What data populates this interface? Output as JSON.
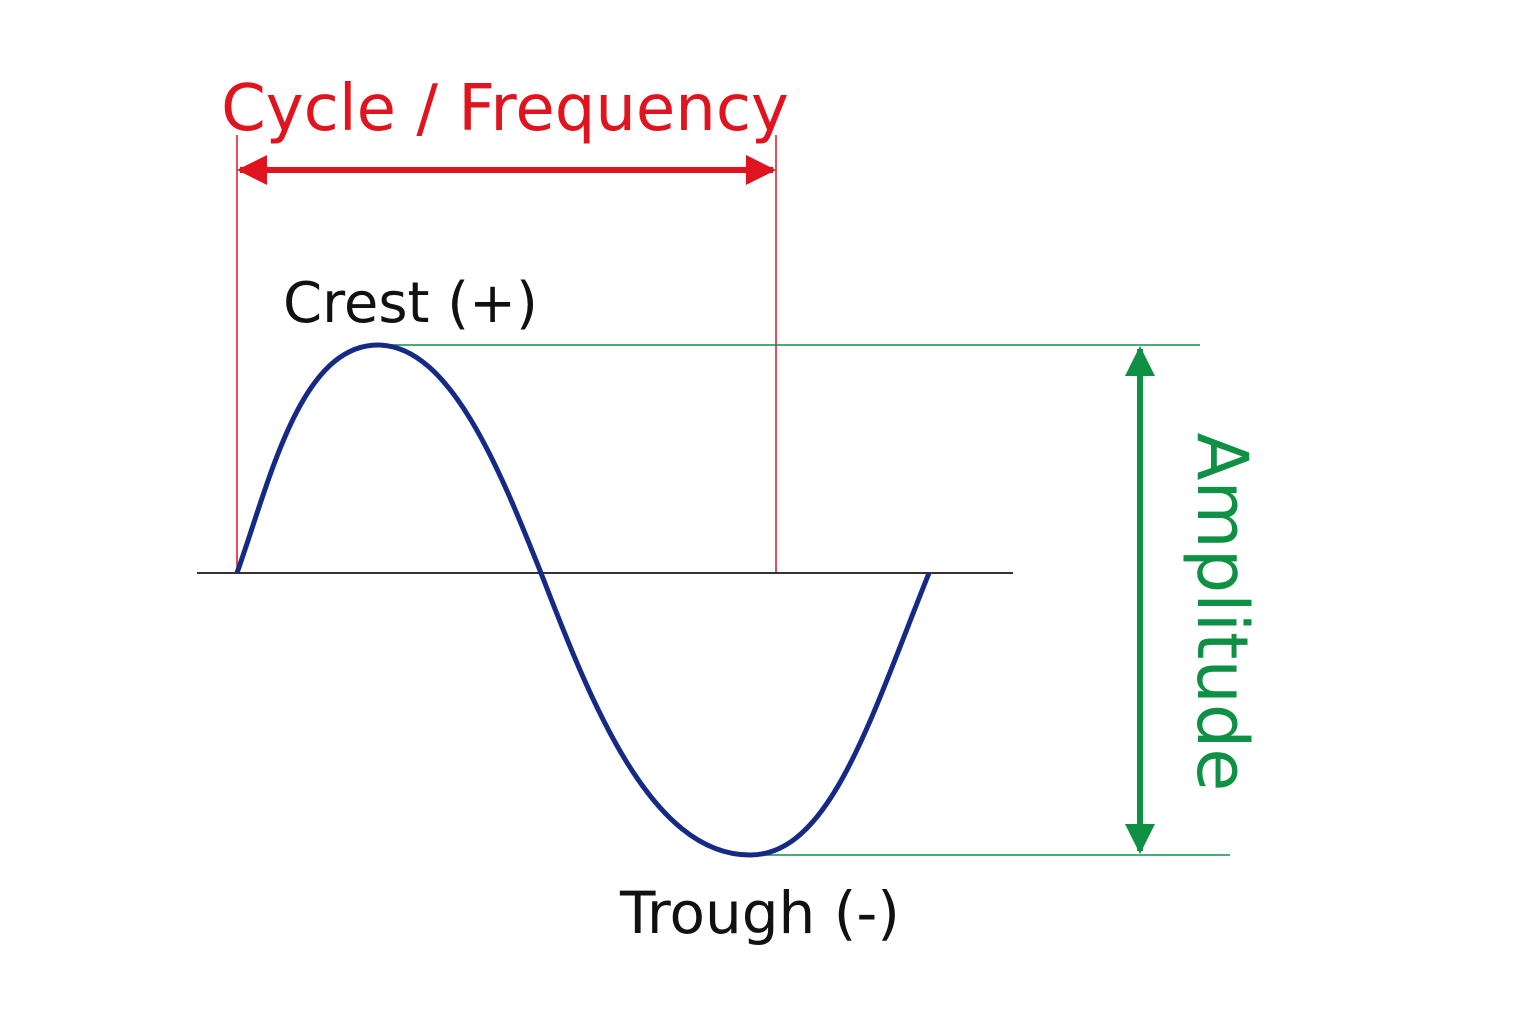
{
  "title": "Cycle / Frequency",
  "labels": {
    "crest": "Crest (+)",
    "trough": "Trough (-)",
    "amplitude": "Amplitude"
  }
}
